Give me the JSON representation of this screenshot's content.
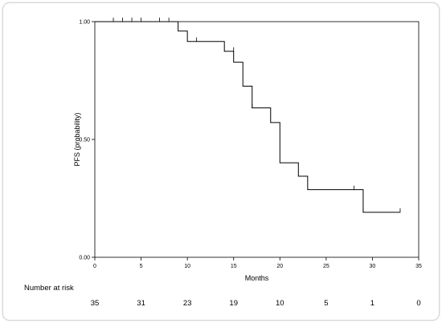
{
  "chart_data": {
    "type": "line",
    "title": "",
    "xlabel": "Months",
    "ylabel": "PFS (probability)",
    "xlim": [
      0,
      35
    ],
    "ylim": [
      0,
      1
    ],
    "xticks": [
      0,
      5,
      10,
      15,
      20,
      25,
      30,
      35
    ],
    "yticks": [
      "0.00",
      "0.50",
      "1.00"
    ],
    "yticks_values": [
      0,
      0.5,
      1
    ],
    "grid": false,
    "step_curve": {
      "x": [
        0,
        9,
        10,
        14,
        15,
        16,
        17,
        19,
        20,
        22,
        23,
        29,
        33
      ],
      "y": [
        1.0,
        0.96,
        0.916,
        0.874,
        0.828,
        0.726,
        0.634,
        0.572,
        0.401,
        0.344,
        0.287,
        0.191,
        0.191
      ]
    },
    "censor_marks": [
      {
        "x": 2,
        "y": 1.0
      },
      {
        "x": 3,
        "y": 1.0
      },
      {
        "x": 4,
        "y": 1.0
      },
      {
        "x": 5,
        "y": 1.0
      },
      {
        "x": 7,
        "y": 1.0
      },
      {
        "x": 8,
        "y": 1.0
      },
      {
        "x": 11,
        "y": 0.916
      },
      {
        "x": 15,
        "y": 0.874
      },
      {
        "x": 17,
        "y": 0.634
      },
      {
        "x": 28,
        "y": 0.287
      },
      {
        "x": 29,
        "y": 0.191
      },
      {
        "x": 33,
        "y": 0.191
      }
    ],
    "risk_table": {
      "label": "Number at risk",
      "times": [
        0,
        5,
        10,
        15,
        20,
        25,
        30,
        35
      ],
      "counts": [
        "35",
        "31",
        "23",
        "19",
        "10",
        "5",
        "1",
        "0"
      ]
    }
  }
}
